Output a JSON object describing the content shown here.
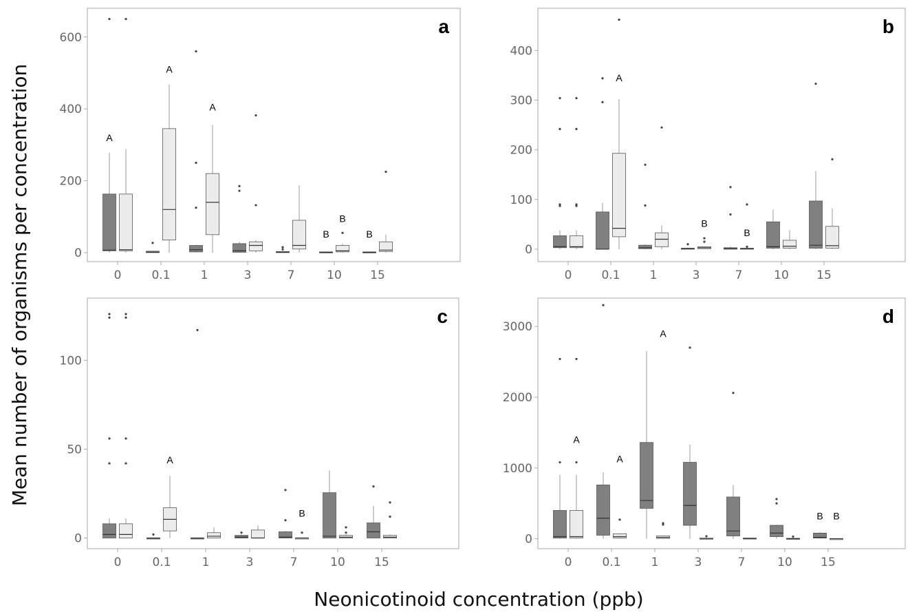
{
  "figure": {
    "ylabel": "Mean number of organisms per concentration",
    "xlabel": "Neonicotinoid concentration (ppb)"
  },
  "colors": {
    "dark_box": "#808080",
    "light_box": "#ececec",
    "stroke": "#555555",
    "whisker": "#999999",
    "outlier": "#444444",
    "panel_border": "#aaaaaa"
  },
  "chart_data": [
    {
      "type": "box",
      "panel_label": "a",
      "categories": [
        "0",
        "0.1",
        "1",
        "3",
        "7",
        "10",
        "15"
      ],
      "ylim": [
        -25,
        680
      ],
      "yticks": [
        0,
        200,
        400,
        600
      ],
      "series": [
        {
          "tone": "dark",
          "boxes": [
            {
              "q1": 5,
              "median": 7,
              "q3": 163,
              "wlo": 0,
              "whi": 278,
              "outliers": [
                650
              ]
            },
            {
              "q1": 0,
              "median": 1,
              "q3": 4,
              "wlo": 0,
              "whi": 5,
              "outliers": [
                27
              ]
            },
            {
              "q1": 2,
              "median": 8,
              "q3": 20,
              "wlo": 0,
              "whi": 22,
              "outliers": [
                125,
                250,
                560
              ]
            },
            {
              "q1": 1,
              "median": 5,
              "q3": 25,
              "wlo": 0,
              "whi": 30,
              "outliers": [
                172,
                185
              ]
            },
            {
              "q1": 0,
              "median": 1,
              "q3": 3,
              "wlo": 0,
              "whi": 5,
              "outliers": [
                9,
                15
              ]
            },
            {
              "q1": 0,
              "median": 1,
              "q3": 2,
              "wlo": 0,
              "whi": 3,
              "outliers": []
            },
            {
              "q1": 0,
              "median": 1,
              "q3": 2,
              "wlo": 0,
              "whi": 3,
              "outliers": []
            }
          ]
        },
        {
          "tone": "light",
          "boxes": [
            {
              "q1": 5,
              "median": 8,
              "q3": 163,
              "wlo": 0,
              "whi": 288,
              "outliers": [
                650
              ]
            },
            {
              "q1": 35,
              "median": 120,
              "q3": 345,
              "wlo": 0,
              "whi": 468,
              "outliers": []
            },
            {
              "q1": 50,
              "median": 140,
              "q3": 220,
              "wlo": 0,
              "whi": 355,
              "outliers": []
            },
            {
              "q1": 5,
              "median": 20,
              "q3": 30,
              "wlo": 0,
              "whi": 35,
              "outliers": [
                132,
                382
              ]
            },
            {
              "q1": 10,
              "median": 20,
              "q3": 90,
              "wlo": 0,
              "whi": 187,
              "outliers": []
            },
            {
              "q1": 2,
              "median": 5,
              "q3": 20,
              "wlo": 0,
              "whi": 25,
              "outliers": [
                55
              ]
            },
            {
              "q1": 3,
              "median": 7,
              "q3": 30,
              "wlo": 0,
              "whi": 50,
              "outliers": [
                225
              ]
            }
          ]
        }
      ],
      "letters": [
        {
          "category": "0",
          "text": "A",
          "value": 320
        },
        {
          "category": "0.1",
          "text": "A",
          "value": 510
        },
        {
          "category": "1",
          "text": "A",
          "value": 405
        },
        {
          "category": "10",
          "text": "B",
          "value": 52
        },
        {
          "category": "10",
          "text": "B",
          "value": 95
        },
        {
          "category": "15",
          "text": "B",
          "value": 52
        }
      ]
    },
    {
      "type": "box",
      "panel_label": "b",
      "categories": [
        "0",
        "0.1",
        "1",
        "3",
        "7",
        "10",
        "15"
      ],
      "ylim": [
        -25,
        485
      ],
      "yticks": [
        0,
        100,
        200,
        300,
        400
      ],
      "series": [
        {
          "tone": "dark",
          "boxes": [
            {
              "q1": 3,
              "median": 5,
              "q3": 27,
              "wlo": 0,
              "whi": 38,
              "outliers": [
                87,
                90,
                242,
                304
              ]
            },
            {
              "q1": 0,
              "median": 0,
              "q3": 75,
              "wlo": 0,
              "whi": 93,
              "outliers": [
                296,
                344
              ]
            },
            {
              "q1": 1,
              "median": 3,
              "q3": 8,
              "wlo": 0,
              "whi": 10,
              "outliers": [
                88,
                170
              ]
            },
            {
              "q1": 0,
              "median": 1,
              "q3": 2,
              "wlo": 0,
              "whi": 3,
              "outliers": [
                10
              ]
            },
            {
              "q1": 0,
              "median": 1,
              "q3": 3,
              "wlo": 0,
              "whi": 5,
              "outliers": [
                70,
                125
              ]
            },
            {
              "q1": 2,
              "median": 5,
              "q3": 55,
              "wlo": 0,
              "whi": 80,
              "outliers": []
            },
            {
              "q1": 2,
              "median": 8,
              "q3": 97,
              "wlo": 0,
              "whi": 157,
              "outliers": [
                333
              ]
            }
          ]
        },
        {
          "tone": "light",
          "boxes": [
            {
              "q1": 3,
              "median": 5,
              "q3": 27,
              "wlo": 0,
              "whi": 38,
              "outliers": [
                87,
                90,
                242,
                304
              ]
            },
            {
              "q1": 25,
              "median": 42,
              "q3": 193,
              "wlo": 0,
              "whi": 302,
              "outliers": [
                462
              ]
            },
            {
              "q1": 5,
              "median": 20,
              "q3": 33,
              "wlo": 0,
              "whi": 48,
              "outliers": [
                245
              ]
            },
            {
              "q1": 1,
              "median": 3,
              "q3": 5,
              "wlo": 0,
              "whi": 6,
              "outliers": [
                15,
                22
              ]
            },
            {
              "q1": 0,
              "median": 1,
              "q3": 2,
              "wlo": 0,
              "whi": 3,
              "outliers": [
                5,
                90
              ]
            },
            {
              "q1": 2,
              "median": 6,
              "q3": 18,
              "wlo": 0,
              "whi": 38,
              "outliers": []
            },
            {
              "q1": 2,
              "median": 7,
              "q3": 46,
              "wlo": 0,
              "whi": 82,
              "outliers": [
                181
              ]
            }
          ]
        }
      ],
      "letters": [
        {
          "category": "0.1",
          "text": "A",
          "value": 345
        },
        {
          "category": "3",
          "text": "B",
          "value": 52
        },
        {
          "category": "7",
          "text": "B",
          "value": 33
        }
      ]
    },
    {
      "type": "box",
      "panel_label": "c",
      "categories": [
        "0",
        "0.1",
        "1",
        "3",
        "7",
        "10",
        "15"
      ],
      "ylim": [
        -6,
        135
      ],
      "yticks": [
        0,
        50,
        100
      ],
      "series": [
        {
          "tone": "dark",
          "boxes": [
            {
              "q1": 0,
              "median": 2,
              "q3": 8,
              "wlo": 0,
              "whi": 11,
              "outliers": [
                42,
                56,
                124,
                126
              ]
            },
            {
              "q1": 0,
              "median": 0,
              "q3": 0,
              "wlo": 0,
              "whi": 0,
              "outliers": [
                2
              ]
            },
            {
              "q1": 0,
              "median": 0,
              "q3": 0,
              "wlo": 0,
              "whi": 0,
              "outliers": [
                117
              ]
            },
            {
              "q1": 0,
              "median": 0.5,
              "q3": 1.5,
              "wlo": 0,
              "whi": 2,
              "outliers": [
                3
              ]
            },
            {
              "q1": 0,
              "median": 0.5,
              "q3": 3.5,
              "wlo": 0,
              "whi": 4,
              "outliers": [
                10,
                27
              ]
            },
            {
              "q1": 0,
              "median": 1,
              "q3": 25.5,
              "wlo": 0,
              "whi": 38,
              "outliers": []
            },
            {
              "q1": 0,
              "median": 3.5,
              "q3": 8.5,
              "wlo": 0,
              "whi": 18,
              "outliers": [
                29
              ]
            }
          ]
        },
        {
          "tone": "light",
          "boxes": [
            {
              "q1": 0,
              "median": 2,
              "q3": 8,
              "wlo": 0,
              "whi": 11,
              "outliers": [
                42,
                56,
                124,
                126
              ]
            },
            {
              "q1": 4,
              "median": 10.5,
              "q3": 17,
              "wlo": 0,
              "whi": 35,
              "outliers": []
            },
            {
              "q1": 0,
              "median": 1,
              "q3": 3,
              "wlo": 0,
              "whi": 6,
              "outliers": []
            },
            {
              "q1": 0,
              "median": 0,
              "q3": 4.5,
              "wlo": 0,
              "whi": 7,
              "outliers": []
            },
            {
              "q1": 0,
              "median": 0,
              "q3": 0,
              "wlo": 0,
              "whi": 0,
              "outliers": [
                3
              ]
            },
            {
              "q1": 0,
              "median": 0.5,
              "q3": 1.5,
              "wlo": 0,
              "whi": 2,
              "outliers": [
                3,
                6
              ]
            },
            {
              "q1": 0,
              "median": 0.5,
              "q3": 1.5,
              "wlo": 0,
              "whi": 2,
              "outliers": [
                12,
                20
              ]
            }
          ]
        }
      ],
      "letters": [
        {
          "category": "0.1",
          "text": "A",
          "value": 44
        },
        {
          "category": "7",
          "text": "B",
          "value": 14
        }
      ]
    },
    {
      "type": "box",
      "panel_label": "d",
      "categories": [
        "0",
        "0.1",
        "1",
        "3",
        "7",
        "10",
        "15"
      ],
      "ylim": [
        -140,
        3400
      ],
      "yticks": [
        0,
        1000,
        2000,
        3000
      ],
      "series": [
        {
          "tone": "dark",
          "boxes": [
            {
              "q1": 10,
              "median": 30,
              "q3": 400,
              "wlo": 0,
              "whi": 900,
              "outliers": [
                1080,
                2540
              ]
            },
            {
              "q1": 50,
              "median": 290,
              "q3": 760,
              "wlo": 0,
              "whi": 940,
              "outliers": [
                3300
              ]
            },
            {
              "q1": 430,
              "median": 540,
              "q3": 1360,
              "wlo": 0,
              "whi": 2650,
              "outliers": []
            },
            {
              "q1": 190,
              "median": 470,
              "q3": 1080,
              "wlo": 0,
              "whi": 1330,
              "outliers": [
                2700
              ]
            },
            {
              "q1": 40,
              "median": 110,
              "q3": 590,
              "wlo": 0,
              "whi": 760,
              "outliers": [
                2060
              ]
            },
            {
              "q1": 30,
              "median": 80,
              "q3": 190,
              "wlo": 0,
              "whi": 200,
              "outliers": [
                500,
                560
              ]
            },
            {
              "q1": 10,
              "median": 20,
              "q3": 80,
              "wlo": 0,
              "whi": 95,
              "outliers": []
            }
          ]
        },
        {
          "tone": "light",
          "boxes": [
            {
              "q1": 10,
              "median": 30,
              "q3": 400,
              "wlo": 0,
              "whi": 900,
              "outliers": [
                1080,
                2540
              ]
            },
            {
              "q1": 10,
              "median": 30,
              "q3": 70,
              "wlo": 0,
              "whi": 80,
              "outliers": [
                270
              ]
            },
            {
              "q1": 5,
              "median": 20,
              "q3": 40,
              "wlo": 0,
              "whi": 45,
              "outliers": [
                200,
                220
              ]
            },
            {
              "q1": 0,
              "median": 5,
              "q3": 8,
              "wlo": 0,
              "whi": 10,
              "outliers": [
                35
              ]
            },
            {
              "q1": 0,
              "median": 5,
              "q3": 10,
              "wlo": 0,
              "whi": 12,
              "outliers": []
            },
            {
              "q1": 0,
              "median": 2,
              "q3": 5,
              "wlo": 0,
              "whi": 6,
              "outliers": [
                30
              ]
            },
            {
              "q1": 0,
              "median": 1,
              "q3": 2,
              "wlo": 0,
              "whi": 3,
              "outliers": []
            }
          ]
        }
      ],
      "letters": [
        {
          "category": "0",
          "text": "A",
          "value": 1400
        },
        {
          "category": "0.1",
          "text": "A",
          "value": 1130
        },
        {
          "category": "1",
          "text": "A",
          "value": 2900
        },
        {
          "category": "15",
          "text": "B",
          "value": 320
        },
        {
          "category": "15",
          "text": "B",
          "value": 320
        }
      ]
    }
  ]
}
